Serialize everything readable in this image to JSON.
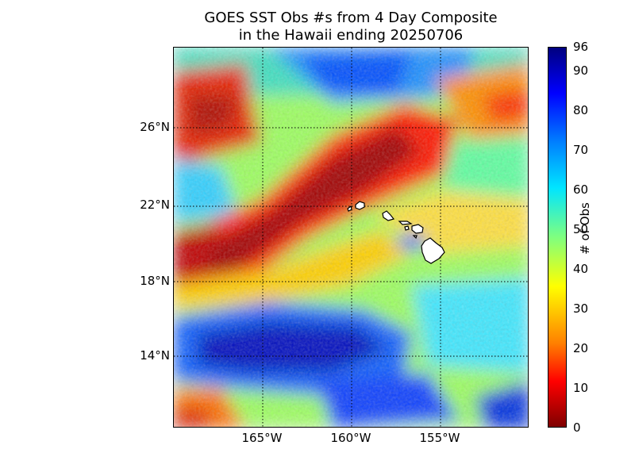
{
  "title": {
    "line1": "GOES SST Obs #s from 4 Day Composite",
    "line2": "in the Hawaii ending 20250706"
  },
  "map": {
    "lat_ticks": [
      "26°N",
      "22°N",
      "18°N",
      "14°N"
    ],
    "lon_ticks": [
      "165°W",
      "160°W",
      "155°W"
    ],
    "gridlines": true,
    "colors": {
      "darkred": "#8b0000",
      "red": "#ff2000",
      "orange": "#ff8000",
      "yellow": "#ffff00",
      "green": "#7fff7f",
      "cyan": "#00e5ff",
      "blue": "#0050ff",
      "darkblue": "#0000b0"
    }
  },
  "colorbar": {
    "label": "# of Obs",
    "ticks": [
      "0",
      "10",
      "20",
      "30",
      "40",
      "50",
      "60",
      "70",
      "80",
      "90",
      "96"
    ],
    "range": [
      0,
      96
    ]
  }
}
